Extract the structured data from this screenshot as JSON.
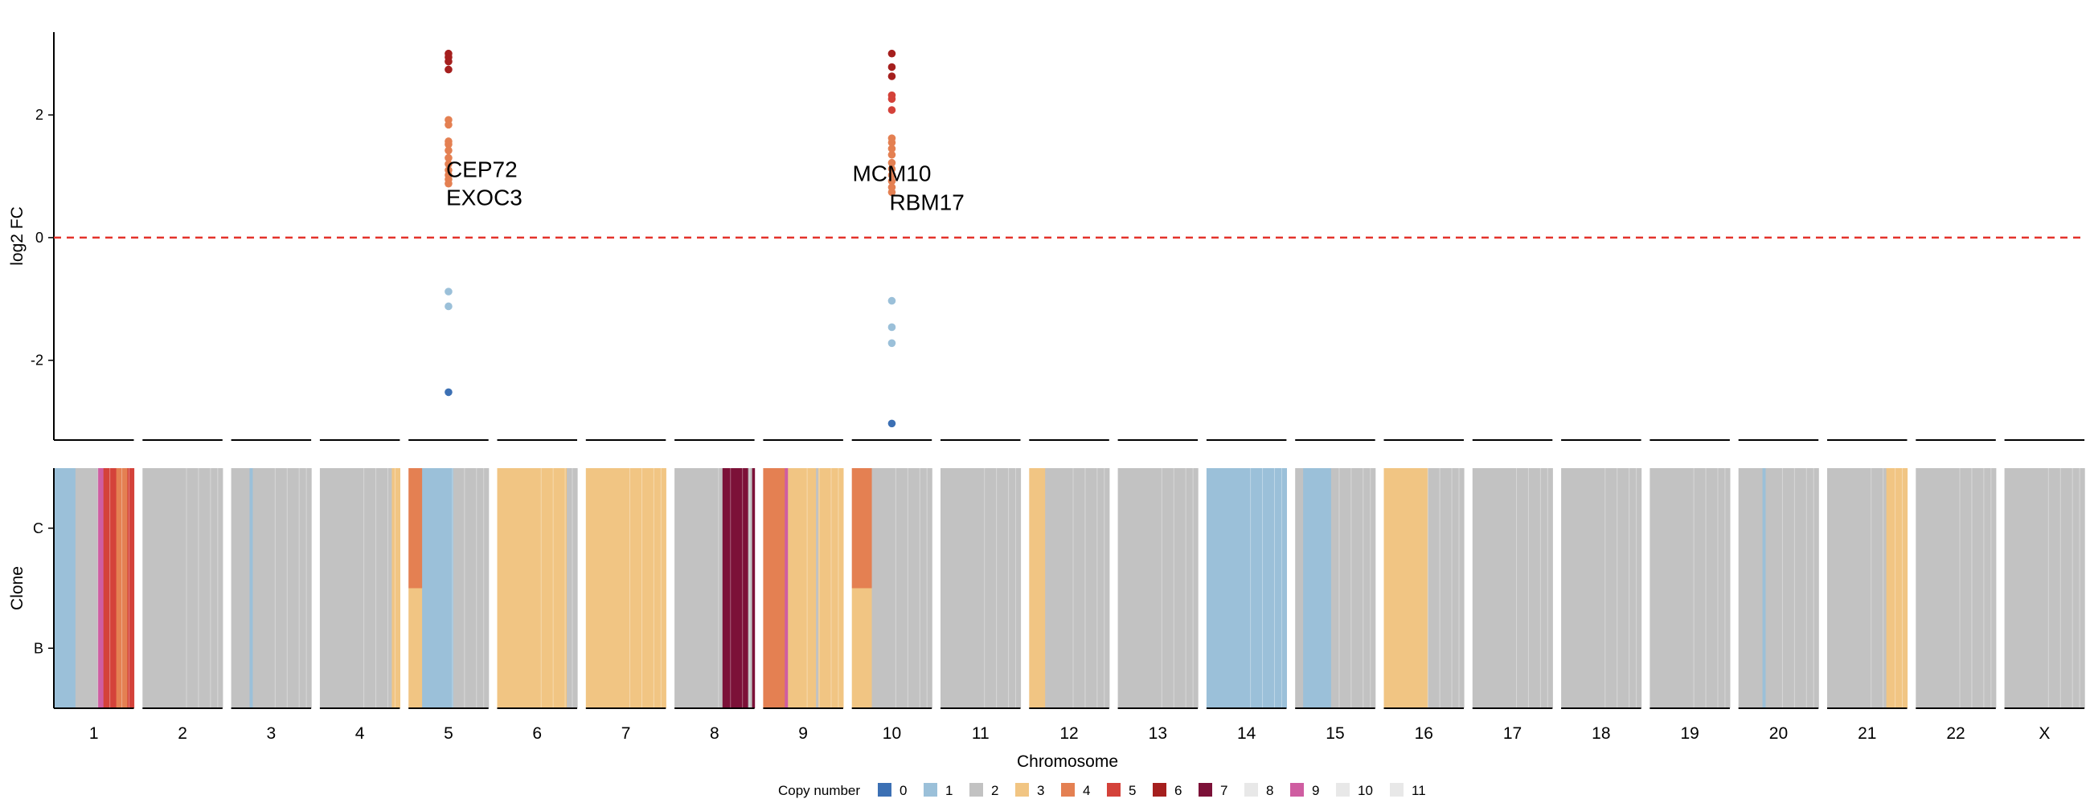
{
  "chart_data": {
    "type": "scatter",
    "top_panel": {
      "ylabel": "log2 FC",
      "yticks": [
        -2,
        0,
        2
      ],
      "ylim": [
        -3.3,
        3.35
      ],
      "reference_line": 0,
      "reference_color": "#e4322b",
      "points": [
        {
          "chr": "5",
          "y": 3.0,
          "cn": 6
        },
        {
          "chr": "5",
          "y": 2.94,
          "cn": 6
        },
        {
          "chr": "5",
          "y": 2.87,
          "cn": 6
        },
        {
          "chr": "5",
          "y": 2.74,
          "cn": 6
        },
        {
          "chr": "5",
          "y": 1.92,
          "cn": 4
        },
        {
          "chr": "5",
          "y": 1.84,
          "cn": 4
        },
        {
          "chr": "5",
          "y": 1.57,
          "cn": 4
        },
        {
          "chr": "5",
          "y": 1.52,
          "cn": 4
        },
        {
          "chr": "5",
          "y": 1.42,
          "cn": 4
        },
        {
          "chr": "5",
          "y": 1.3,
          "cn": 4
        },
        {
          "chr": "5",
          "y": 1.2,
          "cn": 4
        },
        {
          "chr": "5",
          "y": 1.1,
          "cn": 4
        },
        {
          "chr": "5",
          "y": 1.02,
          "cn": 4
        },
        {
          "chr": "5",
          "y": 0.95,
          "cn": 4
        },
        {
          "chr": "5",
          "y": 0.88,
          "cn": 4
        },
        {
          "chr": "5",
          "y": -0.88,
          "cn": 1
        },
        {
          "chr": "5",
          "y": -1.12,
          "cn": 1
        },
        {
          "chr": "5",
          "y": -2.52,
          "cn": 0
        },
        {
          "chr": "10",
          "y": 3.0,
          "cn": 6
        },
        {
          "chr": "10",
          "y": 2.78,
          "cn": 6
        },
        {
          "chr": "10",
          "y": 2.63,
          "cn": 6
        },
        {
          "chr": "10",
          "y": 2.32,
          "cn": 5
        },
        {
          "chr": "10",
          "y": 2.26,
          "cn": 5
        },
        {
          "chr": "10",
          "y": 2.08,
          "cn": 5
        },
        {
          "chr": "10",
          "y": 1.62,
          "cn": 4
        },
        {
          "chr": "10",
          "y": 1.55,
          "cn": 4
        },
        {
          "chr": "10",
          "y": 1.45,
          "cn": 4
        },
        {
          "chr": "10",
          "y": 1.35,
          "cn": 4
        },
        {
          "chr": "10",
          "y": 1.22,
          "cn": 4
        },
        {
          "chr": "10",
          "y": 1.12,
          "cn": 4
        },
        {
          "chr": "10",
          "y": 1.02,
          "cn": 4
        },
        {
          "chr": "10",
          "y": 0.92,
          "cn": 4
        },
        {
          "chr": "10",
          "y": 0.82,
          "cn": 4
        },
        {
          "chr": "10",
          "y": 0.74,
          "cn": 4
        },
        {
          "chr": "10",
          "y": -1.03,
          "cn": 1
        },
        {
          "chr": "10",
          "y": -1.46,
          "cn": 1
        },
        {
          "chr": "10",
          "y": -1.72,
          "cn": 1
        },
        {
          "chr": "10",
          "y": -3.03,
          "cn": 0
        }
      ],
      "labels": [
        {
          "text": "CEP72",
          "chr": "5",
          "y": 1.12,
          "anchor": "start"
        },
        {
          "text": "EXOC3",
          "chr": "5",
          "y": 0.66,
          "anchor": "start"
        },
        {
          "text": "MCM10",
          "chr": "10",
          "y": 1.05,
          "anchor": "middle"
        },
        {
          "text": "RBM17",
          "chr": "10",
          "y": 0.58,
          "anchor": "start"
        }
      ]
    },
    "bottom_panel": {
      "type": "heatmap",
      "ylabel": "Clone",
      "xlabel": "Chromosome",
      "clones": [
        "C",
        "B"
      ],
      "chromosomes": [
        "1",
        "2",
        "3",
        "4",
        "5",
        "6",
        "7",
        "8",
        "9",
        "10",
        "11",
        "12",
        "13",
        "14",
        "15",
        "16",
        "17",
        "18",
        "19",
        "20",
        "21",
        "22",
        "X"
      ],
      "segments": {
        "1": [
          [
            0,
            0.27,
            1
          ],
          [
            0.27,
            0.55,
            2
          ],
          [
            0.55,
            0.62,
            9
          ],
          [
            0.62,
            0.78,
            5
          ],
          [
            0.78,
            0.92,
            4
          ],
          [
            0.92,
            1,
            5
          ]
        ],
        "2": [
          [
            0,
            1,
            2
          ]
        ],
        "3": [
          [
            0,
            0.23,
            2
          ],
          [
            0.23,
            0.27,
            1
          ],
          [
            0.27,
            1,
            2
          ]
        ],
        "4": [
          [
            0,
            0.9,
            2
          ],
          [
            0.9,
            1,
            3
          ]
        ],
        "5": {
          "C": [
            [
              0,
              0.17,
              4
            ],
            [
              0.17,
              0.56,
              1
            ],
            [
              0.56,
              1,
              2
            ]
          ],
          "B": [
            [
              0,
              0.17,
              3
            ],
            [
              0.17,
              0.56,
              1
            ],
            [
              0.56,
              1,
              2
            ]
          ]
        },
        "6": [
          [
            0,
            0.87,
            3
          ],
          [
            0.87,
            1,
            2
          ]
        ],
        "7": [
          [
            0,
            1,
            3
          ]
        ],
        "8": [
          [
            0,
            0.6,
            2
          ],
          [
            0.6,
            0.92,
            7
          ],
          [
            0.92,
            0.97,
            2
          ],
          [
            0.97,
            1,
            7
          ]
        ],
        "9": [
          [
            0,
            0.27,
            4
          ],
          [
            0.27,
            0.31,
            9
          ],
          [
            0.31,
            0.66,
            3
          ],
          [
            0.66,
            0.69,
            2
          ],
          [
            0.69,
            1,
            3
          ]
        ],
        "10": {
          "C": [
            [
              0,
              0.25,
              4
            ],
            [
              0.25,
              1,
              2
            ]
          ],
          "B": [
            [
              0,
              0.25,
              3
            ],
            [
              0.25,
              1,
              2
            ]
          ]
        },
        "11": [
          [
            0,
            1,
            2
          ]
        ],
        "12": [
          [
            0,
            0.2,
            3
          ],
          [
            0.2,
            1,
            2
          ]
        ],
        "13": [
          [
            0,
            1,
            2
          ]
        ],
        "14": [
          [
            0,
            1,
            1
          ]
        ],
        "15": [
          [
            0,
            0.1,
            2
          ],
          [
            0.1,
            0.45,
            1
          ],
          [
            0.45,
            1,
            2
          ]
        ],
        "16": [
          [
            0,
            0.55,
            3
          ],
          [
            0.55,
            1,
            2
          ]
        ],
        "17": [
          [
            0,
            1,
            2
          ]
        ],
        "18": [
          [
            0,
            1,
            2
          ]
        ],
        "19": [
          [
            0,
            1,
            2
          ]
        ],
        "20": [
          [
            0,
            0.3,
            2
          ],
          [
            0.3,
            0.34,
            1
          ],
          [
            0.34,
            1,
            2
          ]
        ],
        "21": [
          [
            0,
            0.74,
            2
          ],
          [
            0.74,
            1,
            3
          ]
        ],
        "22": [
          [
            0,
            1,
            2
          ]
        ],
        "X": [
          [
            0,
            1,
            2
          ]
        ]
      }
    },
    "legend": {
      "title": "Copy number",
      "entries": [
        {
          "label": "0",
          "color": "#3c70b4"
        },
        {
          "label": "1",
          "color": "#9bc0d9"
        },
        {
          "label": "2",
          "color": "#c2c2c2"
        },
        {
          "label": "3",
          "color": "#f1c583"
        },
        {
          "label": "4",
          "color": "#e48052"
        },
        {
          "label": "5",
          "color": "#d4423a"
        },
        {
          "label": "6",
          "color": "#a51f1e"
        },
        {
          "label": "7",
          "color": "#7c1138"
        },
        {
          "label": "8",
          "color": "#e8e8e8"
        },
        {
          "label": "9",
          "color": "#cf5da1"
        },
        {
          "label": "10",
          "color": "#e8e8e8"
        },
        {
          "label": "11",
          "color": "#e8e8e8"
        }
      ]
    }
  }
}
